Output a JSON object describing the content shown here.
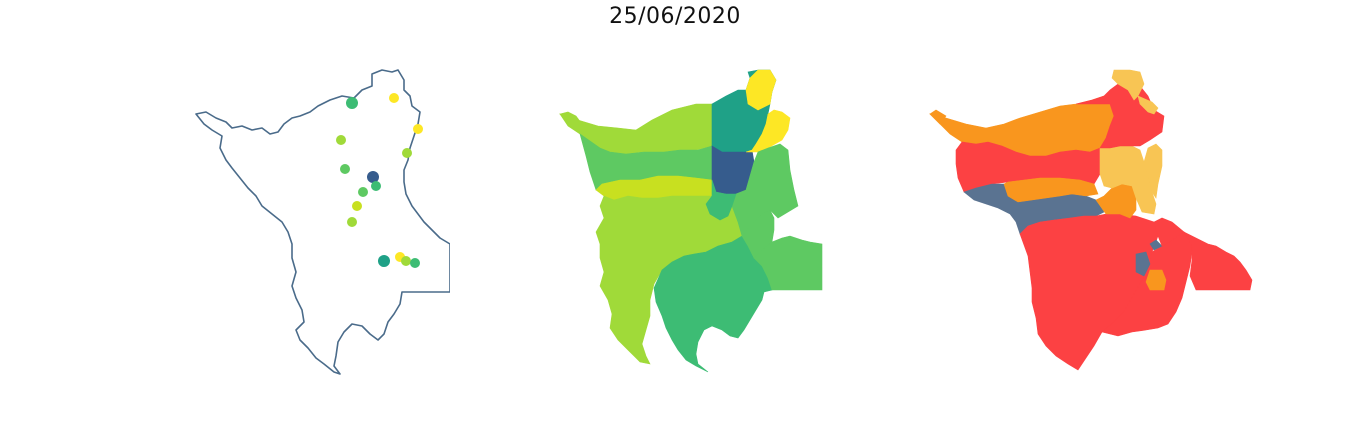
{
  "title": "25/06/2020",
  "colors": {
    "outline": "#4a6b8a",
    "viridis": [
      "#365c8d",
      "#1fa187",
      "#3dbc74",
      "#5ec962",
      "#a0da39",
      "#c8e020",
      "#fde725"
    ],
    "classes": [
      "#5a7391",
      "#fc4143",
      "#f9961e",
      "#f8c554"
    ]
  },
  "maps": [
    {
      "name": "station-map",
      "description_hidden": true
    },
    {
      "name": "interpolated-map"
    },
    {
      "name": "classified-map"
    }
  ]
}
